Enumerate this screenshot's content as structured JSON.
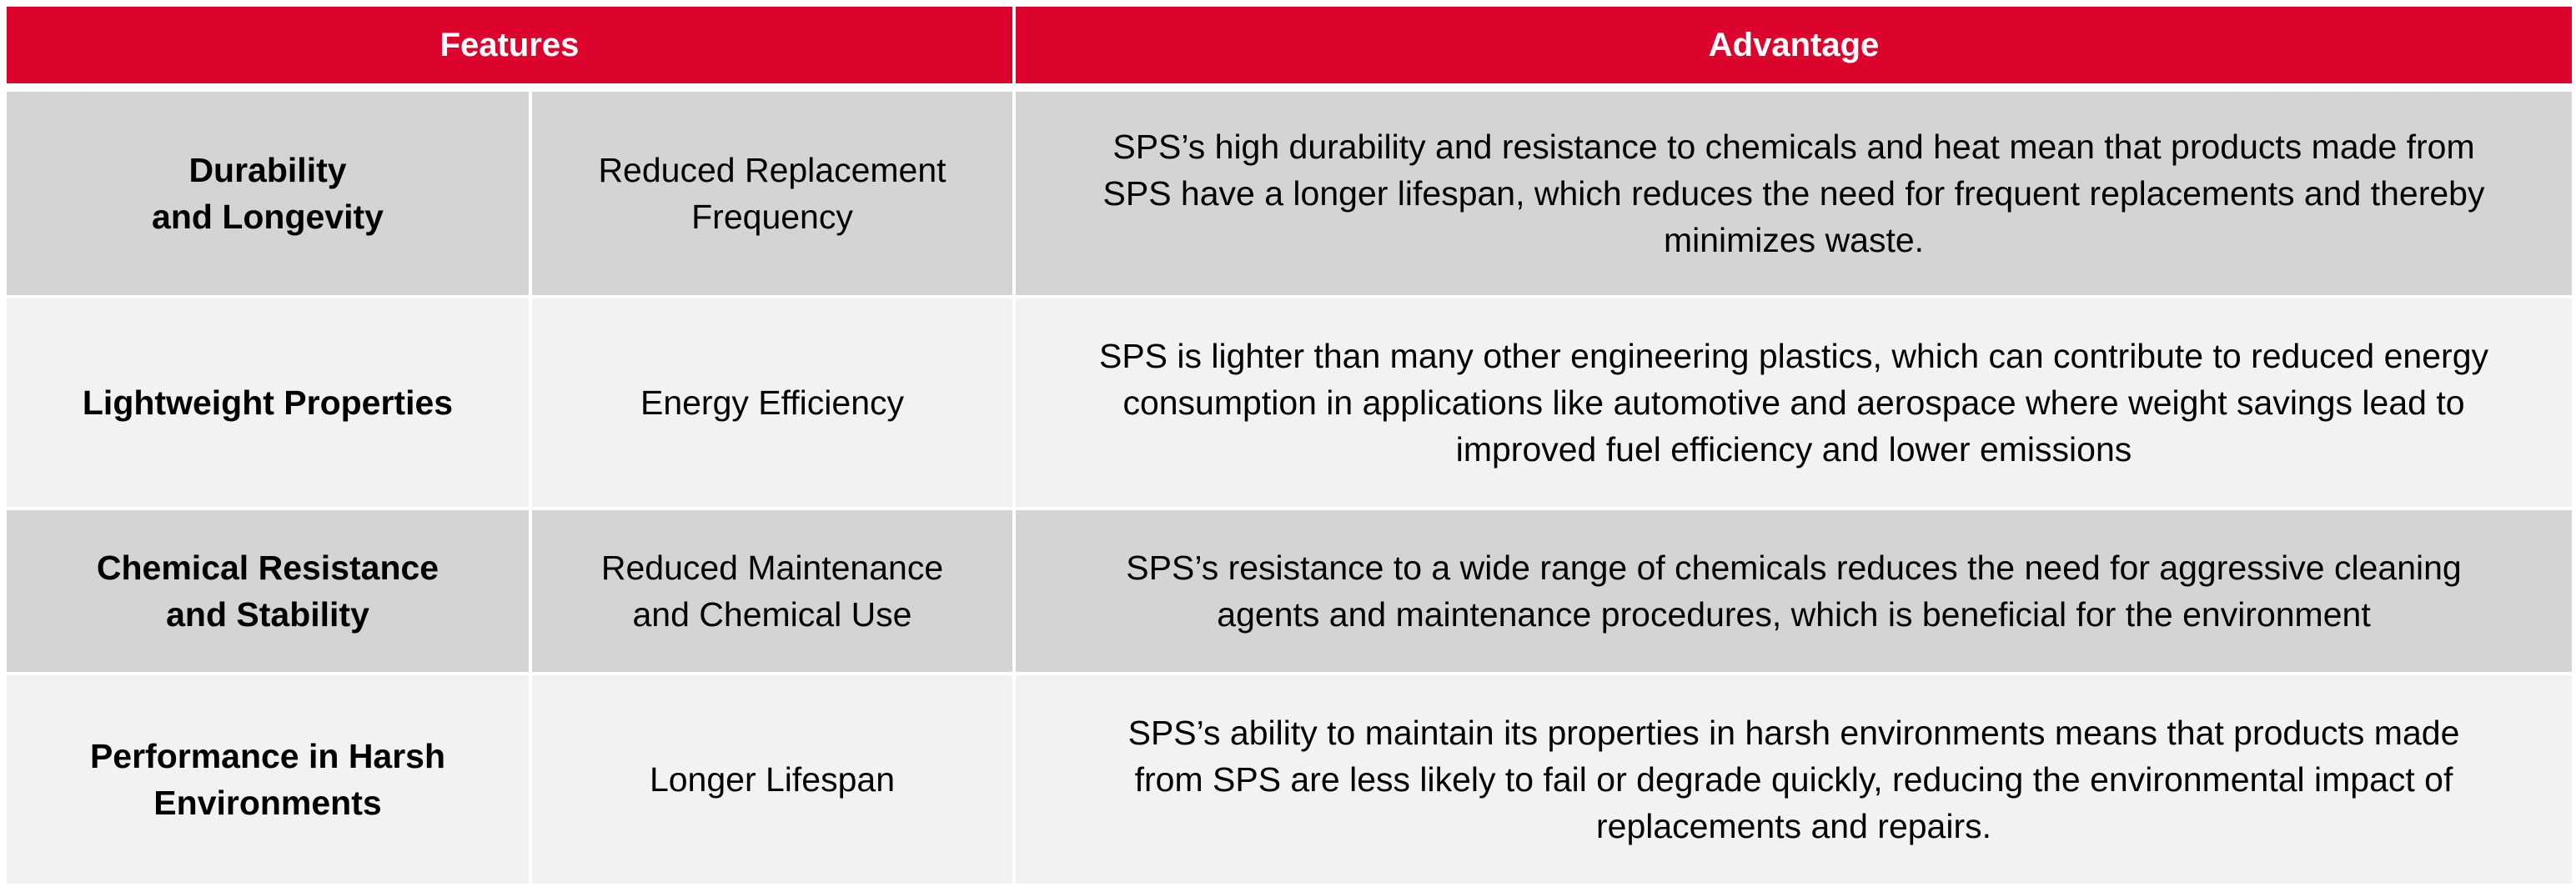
{
  "header": {
    "features": "Features",
    "advantage": "Advantage"
  },
  "rows": [
    {
      "feature": [
        "Durability",
        "and Longevity"
      ],
      "benefit": [
        "Reduced Replacement",
        "Frequency"
      ],
      "advantage": [
        "SPS’s high durability and resistance to chemicals and heat mean that products made from",
        "SPS have a longer lifespan, which reduces the need for frequent replacements and thereby",
        "minimizes waste."
      ]
    },
    {
      "feature": [
        "Lightweight Properties"
      ],
      "benefit": [
        "Energy Efficiency"
      ],
      "advantage": [
        "SPS is lighter than many other engineering plastics, which can contribute to reduced energy",
        "consumption in applications like automotive and aerospace where weight savings lead to",
        "improved fuel efficiency and lower emissions"
      ]
    },
    {
      "feature": [
        "Chemical Resistance",
        "and Stability"
      ],
      "benefit": [
        "Reduced Maintenance",
        "and Chemical Use"
      ],
      "advantage": [
        "SPS’s resistance to a wide range of chemicals reduces the need for aggressive cleaning",
        "agents and maintenance procedures, which is beneficial for the environment"
      ]
    },
    {
      "feature": [
        "Performance in Harsh",
        "Environments"
      ],
      "benefit": [
        "Longer Lifespan"
      ],
      "advantage": [
        "SPS’s ability to maintain its properties in harsh environments means that products made",
        "from SPS are less likely to fail or degrade quickly, reducing the environmental impact of",
        "replacements and repairs."
      ]
    }
  ],
  "colors": {
    "header_bg": "#dc032d",
    "header_text": "#ffffff",
    "row_dark": "#d4d4d4",
    "row_light": "#f2f2f2"
  }
}
